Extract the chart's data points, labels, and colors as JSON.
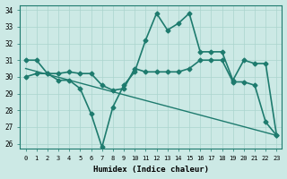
{
  "xlabel": "Humidex (Indice chaleur)",
  "xlim": [
    -0.5,
    23.5
  ],
  "ylim": [
    25.7,
    34.3
  ],
  "yticks": [
    26,
    27,
    28,
    29,
    30,
    31,
    32,
    33,
    34
  ],
  "xticks": [
    0,
    1,
    2,
    3,
    4,
    5,
    6,
    7,
    8,
    9,
    10,
    11,
    12,
    13,
    14,
    15,
    16,
    17,
    18,
    19,
    20,
    21,
    22,
    23
  ],
  "bg_color": "#cce9e5",
  "grid_color": "#aad4ce",
  "line_color": "#1e7b6e",
  "lines": [
    {
      "x": [
        0,
        1,
        2,
        3,
        4,
        5,
        6,
        7,
        8,
        9,
        10,
        11,
        12,
        13,
        14,
        15,
        16,
        17,
        18,
        19,
        20,
        21,
        22,
        23
      ],
      "y": [
        31.0,
        31.0,
        30.2,
        29.8,
        29.8,
        29.3,
        27.8,
        25.8,
        28.2,
        29.5,
        30.3,
        32.2,
        33.8,
        32.8,
        33.2,
        33.8,
        31.5,
        31.5,
        31.5,
        29.8,
        31.0,
        30.8,
        30.8,
        26.5
      ],
      "marker": "D",
      "markersize": 2.5,
      "linewidth": 1.2
    },
    {
      "x": [
        0,
        1,
        2,
        3,
        4,
        5,
        6,
        7,
        8,
        9,
        10,
        11,
        12,
        13,
        14,
        15,
        16,
        17,
        18,
        19,
        20,
        21,
        22,
        23
      ],
      "y": [
        30.0,
        30.2,
        30.2,
        30.2,
        30.3,
        30.2,
        30.2,
        29.5,
        29.2,
        29.3,
        30.5,
        30.3,
        30.3,
        30.3,
        30.3,
        30.5,
        31.0,
        31.0,
        31.0,
        29.7,
        29.7,
        29.5,
        27.3,
        26.5
      ],
      "marker": "D",
      "markersize": 2.5,
      "linewidth": 1.2
    },
    {
      "x": [
        0,
        23
      ],
      "y": [
        30.5,
        26.5
      ],
      "marker": null,
      "markersize": 0,
      "linewidth": 1.0
    }
  ]
}
